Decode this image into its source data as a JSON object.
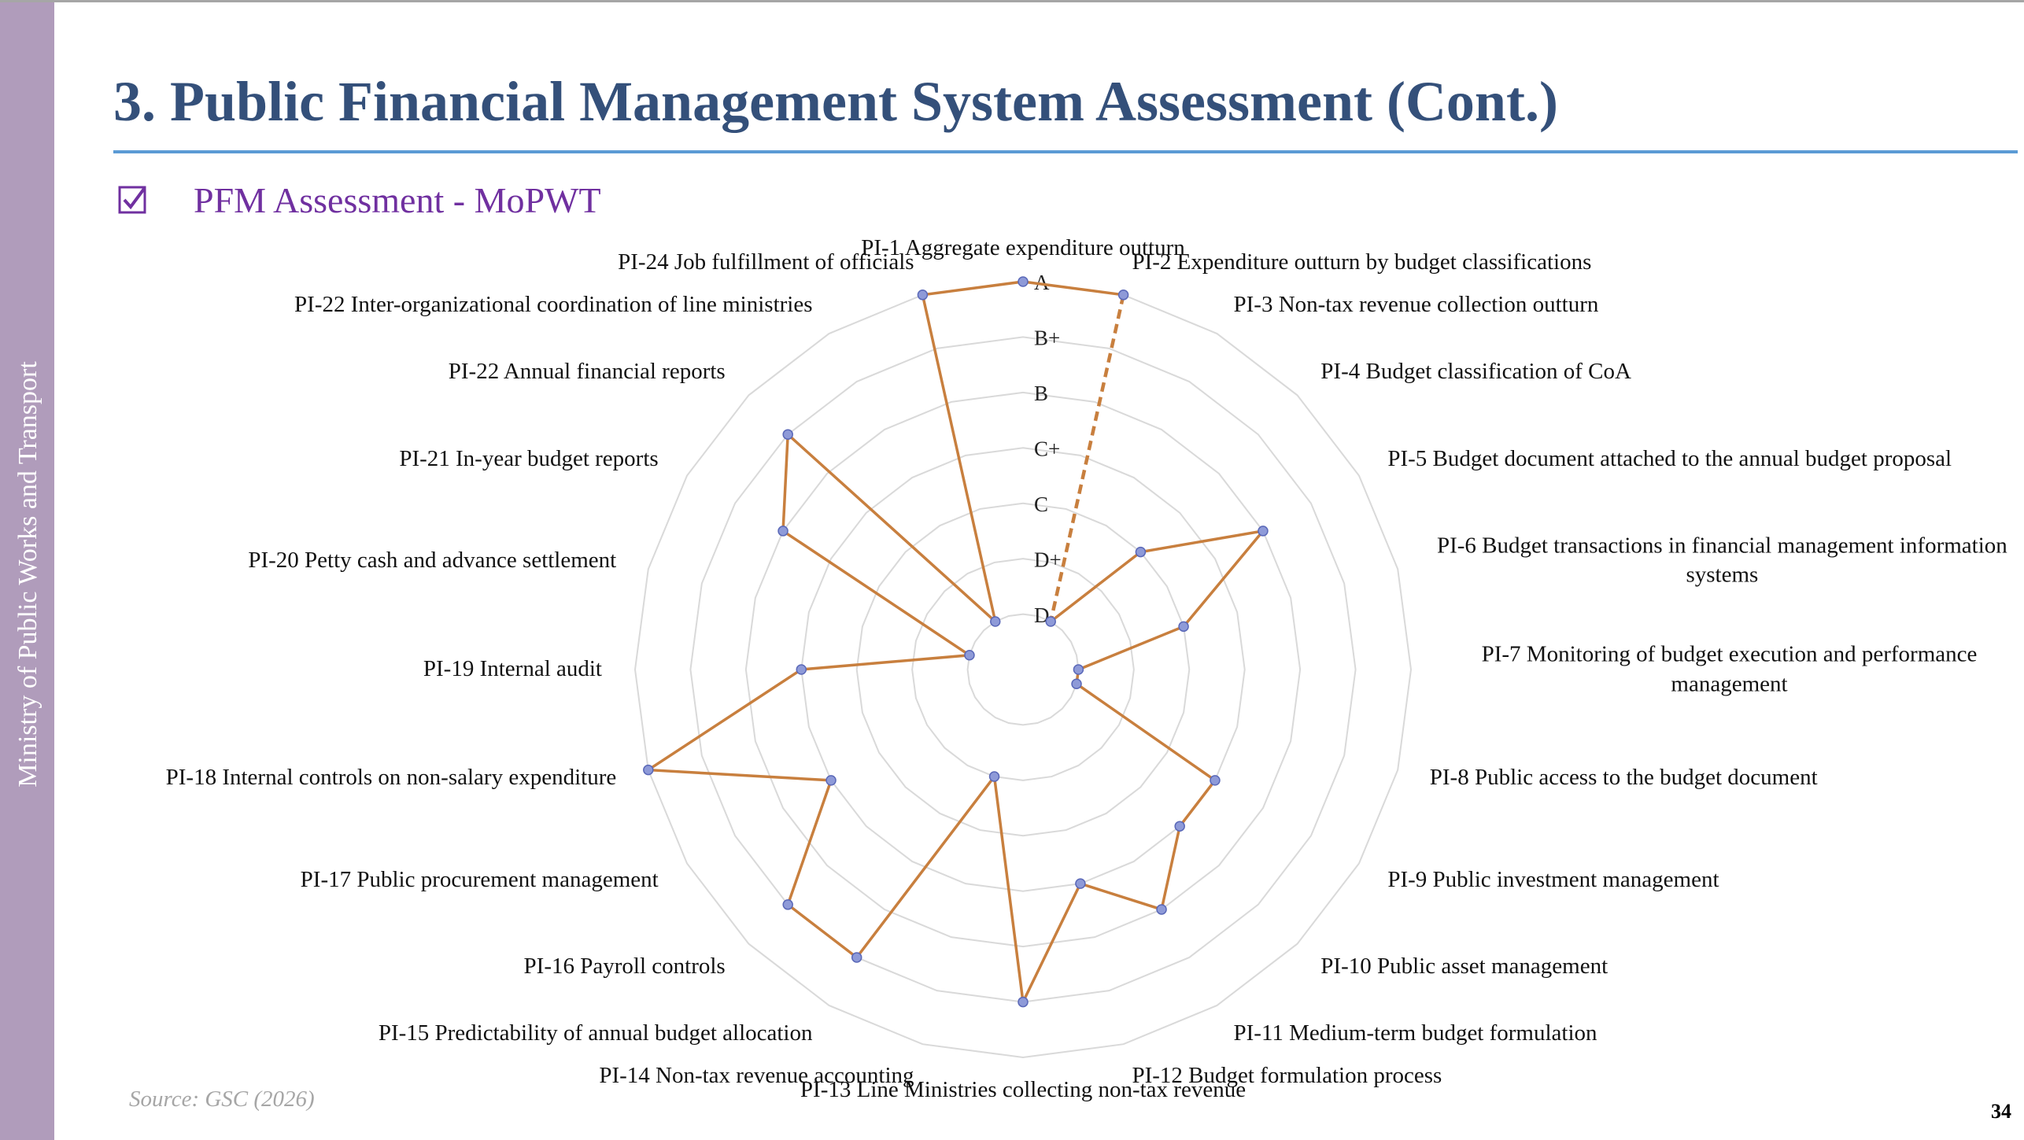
{
  "sidebar": "Ministry of Public Works and Transport",
  "header": {
    "title": "3. Public Financial Management System Assessment (Cont.)"
  },
  "subtitle": "PFM Assessment - MoPWT",
  "chart_data": {
    "type": "radar",
    "categories": [
      "PI-1 Aggregate expenditure outturn",
      "PI-2 Expenditure outturn by budget classifications",
      "PI-3 Non-tax revenue collection outturn",
      "PI-4 Budget classification of CoA",
      "PI-5 Budget document attached to the annual budget proposal",
      "PI-6 Budget transactions in financial management information systems",
      "PI-7 Monitoring of budget execution and performance management",
      "PI-8 Public access to the budget document",
      "PI-9 Public investment management",
      "PI-10 Public asset management",
      "PI-11 Medium-term budget formulation",
      "PI-12 Budget formulation process",
      "PI-13 Line Ministries collecting non-tax revenue",
      "PI-14 Non-tax revenue accounting",
      "PI-15 Predictability of annual budget allocation",
      "PI-16 Payroll controls",
      "PI-17 Public procurement management",
      "PI-18 Internal controls on non-salary expenditure",
      "PI-19 Internal audit",
      "PI-20 Petty cash and advance settlement",
      "PI-21 In-year budget reports",
      "PI-22 Annual financial reports",
      "PI-22 Inter-organizational coordination of line ministries",
      "PI-24 Job fulfillment of officials"
    ],
    "values": [
      7,
      7,
      1,
      3,
      5,
      3,
      1,
      1,
      4,
      4,
      5,
      4,
      6,
      2,
      6,
      6,
      4,
      7,
      4,
      1,
      5,
      6,
      1,
      7
    ],
    "color": "#c87f3e",
    "marker_color": "#8e9ad8",
    "dashed_segments": [
      1
    ],
    "ylim": [
      0,
      7
    ],
    "yticks": [
      {
        "value": 1,
        "label": "D"
      },
      {
        "value": 2,
        "label": "D+"
      },
      {
        "value": 3,
        "label": "C"
      },
      {
        "value": 4,
        "label": "C+"
      },
      {
        "value": 5,
        "label": "B"
      },
      {
        "value": 6,
        "label": "B+"
      },
      {
        "value": 7,
        "label": "A"
      }
    ],
    "grid": true
  },
  "source": "Source: GSC (2026)",
  "page_number": 34
}
